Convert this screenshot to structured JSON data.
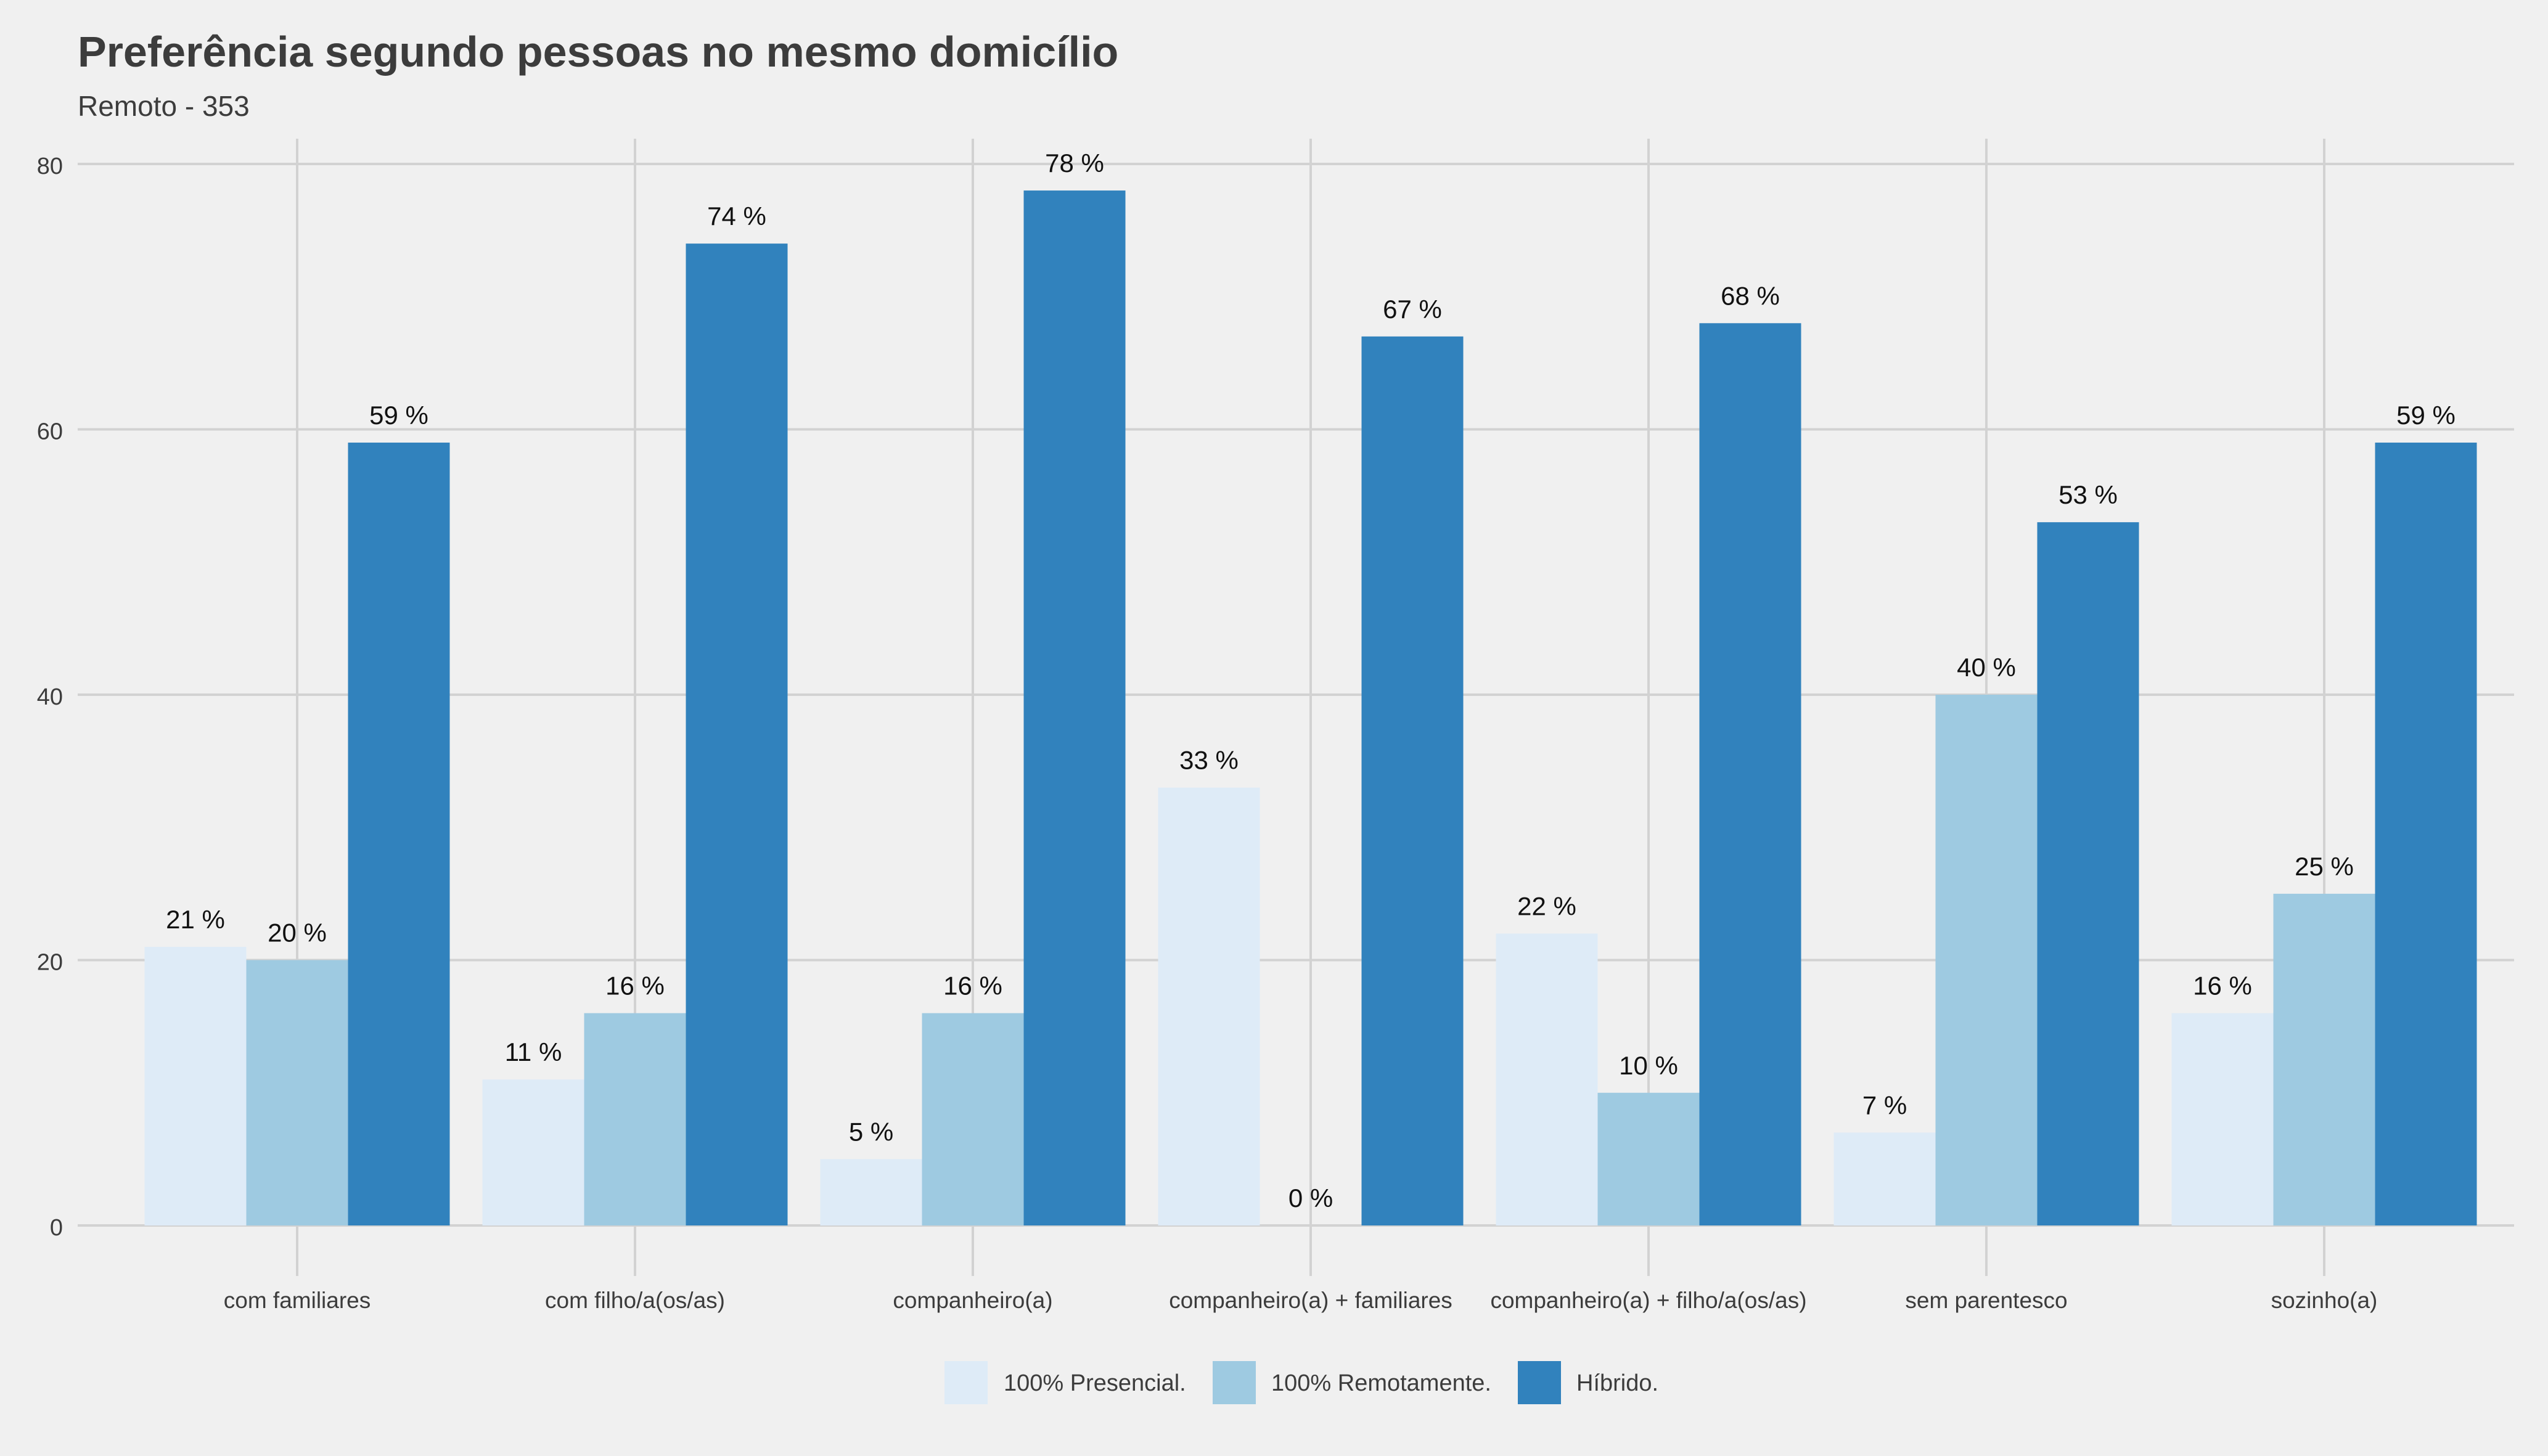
{
  "chart_data": {
    "type": "bar",
    "title": "Preferência segundo pessoas no mesmo domicílio",
    "subtitle": "Remoto - 353",
    "xlabel": "",
    "ylabel": "",
    "ylim": [
      0,
      80
    ],
    "yticks": [
      0,
      20,
      40,
      60,
      80
    ],
    "grid": true,
    "legend_position": "bottom",
    "categories": [
      "com familiares",
      "com filho/a(os/as)",
      "companheiro(a)",
      "companheiro(a) + familiares",
      "companheiro(a) + filho/a(os/as)",
      "sem parentesco",
      "sozinho(a)"
    ],
    "series": [
      {
        "name": "100% Presencial.",
        "color": "#deebf7",
        "values": [
          21,
          11,
          5,
          33,
          22,
          7,
          16
        ],
        "labels": [
          "21 %",
          "11 %",
          "5 %",
          "33 %",
          "22 %",
          "7 %",
          "16 %"
        ]
      },
      {
        "name": "100% Remotamente.",
        "color": "#9ecae1",
        "values": [
          20,
          16,
          16,
          0,
          10,
          40,
          25
        ],
        "labels": [
          "20 %",
          "16 %",
          "16 %",
          "0 %",
          "10 %",
          "40 %",
          "25 %"
        ]
      },
      {
        "name": "Híbrido.",
        "color": "#3182bd",
        "values": [
          59,
          74,
          78,
          67,
          68,
          53,
          59
        ],
        "labels": [
          "59 %",
          "74 %",
          "78 %",
          "67 %",
          "68 %",
          "53 %",
          "59 %"
        ]
      }
    ]
  }
}
